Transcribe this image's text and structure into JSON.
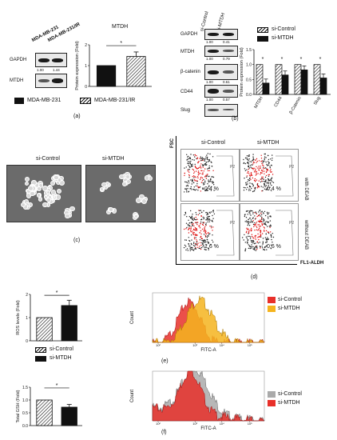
{
  "panel_a": {
    "cell_lines": [
      "MDA-MB-231",
      "MDA-MB-231/IR"
    ],
    "gapdh_label": "GAPDH",
    "mtdh_label": "MTDH",
    "mtdh_values": [
      "1.00",
      "1.44"
    ],
    "chart_title": "MTDH",
    "significance": "*",
    "legend": [
      "MDA-MB-231",
      "MDA-MB-231/IR"
    ],
    "panel_letter": "(a)"
  },
  "panel_b": {
    "lanes": [
      "si-Control",
      "si-MTDH"
    ],
    "gapdh_label": "GAPDH",
    "gapdh_values": [
      "1.00",
      "0.41"
    ],
    "mtdh_label": "MTDH",
    "mtdh_values": [
      "1.00",
      "0.79"
    ],
    "bcat_label": "β-catenin",
    "bcat_values": [
      "1.00",
      "0.61"
    ],
    "cd44_label": "CD44",
    "cd44_values": [
      "1.00",
      "0.57"
    ],
    "slug_label": "Slug",
    "legend": [
      "si-Control",
      "si-MTDH"
    ],
    "significance": "*",
    "panel_letter": "(b)"
  },
  "panel_c": {
    "labels": [
      "si-Control",
      "si-MTDH"
    ],
    "panel_letter": "(c)"
  },
  "panel_d": {
    "columns": [
      "si-Control",
      "si-MTDH"
    ],
    "rows": [
      "with DEAB",
      "without DEAB"
    ],
    "y_axis": "FSC",
    "x_axis": "FL1-ALDH",
    "percentages": [
      "0.4 %",
      "0.4 %",
      "1.6 %",
      "0.6 %"
    ],
    "gate_label": "P2",
    "panel_letter": "(d)"
  },
  "panel_e": {
    "significance": "*",
    "legend": [
      "si-Control",
      "si-MTDH"
    ],
    "count_label": "Count",
    "fitc_label": "FITC-A",
    "colors": {
      "control": "#e8302a",
      "mtdh": "#f5b41e"
    },
    "panel_letter": "(e)"
  },
  "panel_f": {
    "significance": "*",
    "legend": [
      "si-Control",
      "si-MTDH"
    ],
    "count_label": "Count",
    "fitc_label": "FITC-A",
    "colors": {
      "control": "#aaaaaa",
      "mtdh": "#e8302a"
    },
    "panel_letter": "(f)"
  },
  "chart_data": [
    {
      "type": "bar",
      "categories": [
        "MDA-MB-231",
        "MDA-MB-231/IR"
      ],
      "values": [
        1.0,
        1.44
      ],
      "ylabel": "Protein expression (Fold)",
      "title": "MTDH",
      "ylim": [
        0,
        2
      ],
      "yticks": [
        "0",
        "1",
        "2"
      ]
    },
    {
      "type": "bar",
      "categories": [
        "MTDH",
        "CD44",
        "β-Catenin",
        "Slug"
      ],
      "series": [
        {
          "name": "si-Control",
          "values": [
            1.0,
            1.0,
            1.0,
            1.0
          ]
        },
        {
          "name": "si-MTDH",
          "values": [
            0.38,
            0.65,
            0.82,
            0.55
          ]
        }
      ],
      "ylabel": "Protein expression (Fold)",
      "ylim": [
        0,
        1.5
      ],
      "yticks": [
        "0.0",
        "0.5",
        "1.0",
        "1.5"
      ]
    },
    {
      "type": "bar",
      "categories": [
        "si-Control",
        "si-MTDH"
      ],
      "values": [
        1.0,
        1.52
      ],
      "ylabel": "ROS levels (Fold)",
      "ylim": [
        0,
        2
      ],
      "yticks": [
        "0",
        "1",
        "2"
      ]
    },
    {
      "type": "bar",
      "categories": [
        "si-Control",
        "si-MTDH"
      ],
      "values": [
        1.0,
        0.72
      ],
      "ylabel": "Total GSH (Fold)",
      "ylim": [
        0,
        1.5
      ],
      "yticks": [
        "0.0",
        "0.5",
        "1.0",
        "1.5"
      ]
    }
  ]
}
